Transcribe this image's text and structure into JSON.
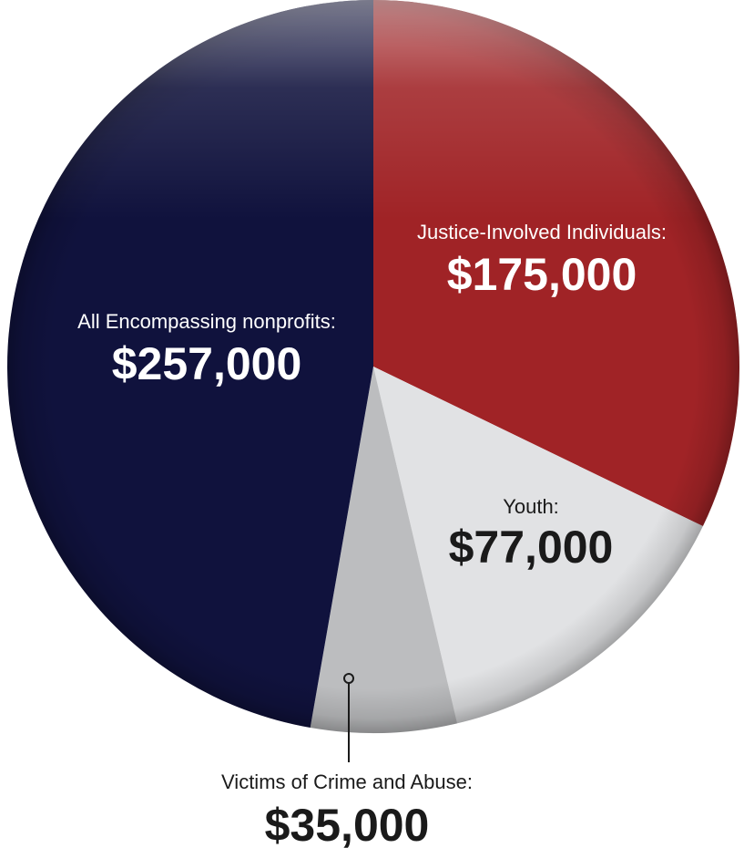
{
  "chart_data": {
    "type": "pie",
    "title": "",
    "start_angle_deg": 0,
    "direction": "clockwise",
    "slices": [
      {
        "label": "Justice-Involved Individuals:",
        "value_label": "$175,000",
        "value": 175000,
        "color": "#a02326",
        "text_color": "#ffffff"
      },
      {
        "label": "Youth:",
        "value_label": "$77,000",
        "value": 77000,
        "color": "#e1e2e4",
        "text_color": "#1a1a1a"
      },
      {
        "label": "Victims of Crime and Abuse:",
        "value_label": "$35,000",
        "value": 35000,
        "color": "#bcbdbf",
        "text_color": "#1a1a1a"
      },
      {
        "label": "All Encompassing nonprofits:",
        "value_label": "$257,000",
        "value": 257000,
        "color": "#10123d",
        "text_color": "#ffffff"
      }
    ]
  }
}
